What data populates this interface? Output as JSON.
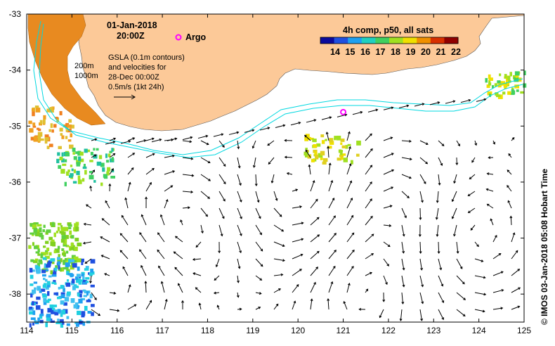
{
  "map": {
    "date": "01-Jan-2018",
    "time": "20:00Z",
    "argo_label": "Argo",
    "gsla_lines": [
      "GSLA (0.1m contours)",
      "and velocities for",
      "28-Dec 00:00Z",
      "0.5m/s (1kt 24h)"
    ],
    "isobath_labels": [
      "200m",
      "1000m"
    ],
    "credit": "© IMOS 03-Jan-2018 05:08 Hobart Time",
    "x_ticks": [
      "114",
      "115",
      "116",
      "117",
      "118",
      "119",
      "120",
      "121",
      "122",
      "123",
      "124",
      "125"
    ],
    "y_ticks": [
      "-33",
      "-34",
      "-35",
      "-36",
      "-37",
      "-38"
    ],
    "lon_range": [
      114,
      125
    ],
    "lat_range": [
      -38.5,
      -33
    ],
    "argo_position": {
      "lon": 121.0,
      "lat": -34.75
    },
    "colors": {
      "land": "#fcc998",
      "current_contour": "#00d8e0",
      "argo": "#ff00ff",
      "arrows": "#000000"
    }
  },
  "colorbar": {
    "title": "4h comp, p50, all sats",
    "labels": [
      "14",
      "15",
      "16",
      "17",
      "18",
      "19",
      "20",
      "21",
      "22"
    ],
    "colors": [
      "#0a0a9c",
      "#1f4fe0",
      "#1ea0f0",
      "#20d0c0",
      "#40d060",
      "#a0e020",
      "#f0e000",
      "#f09000",
      "#d83000",
      "#900000"
    ]
  }
}
